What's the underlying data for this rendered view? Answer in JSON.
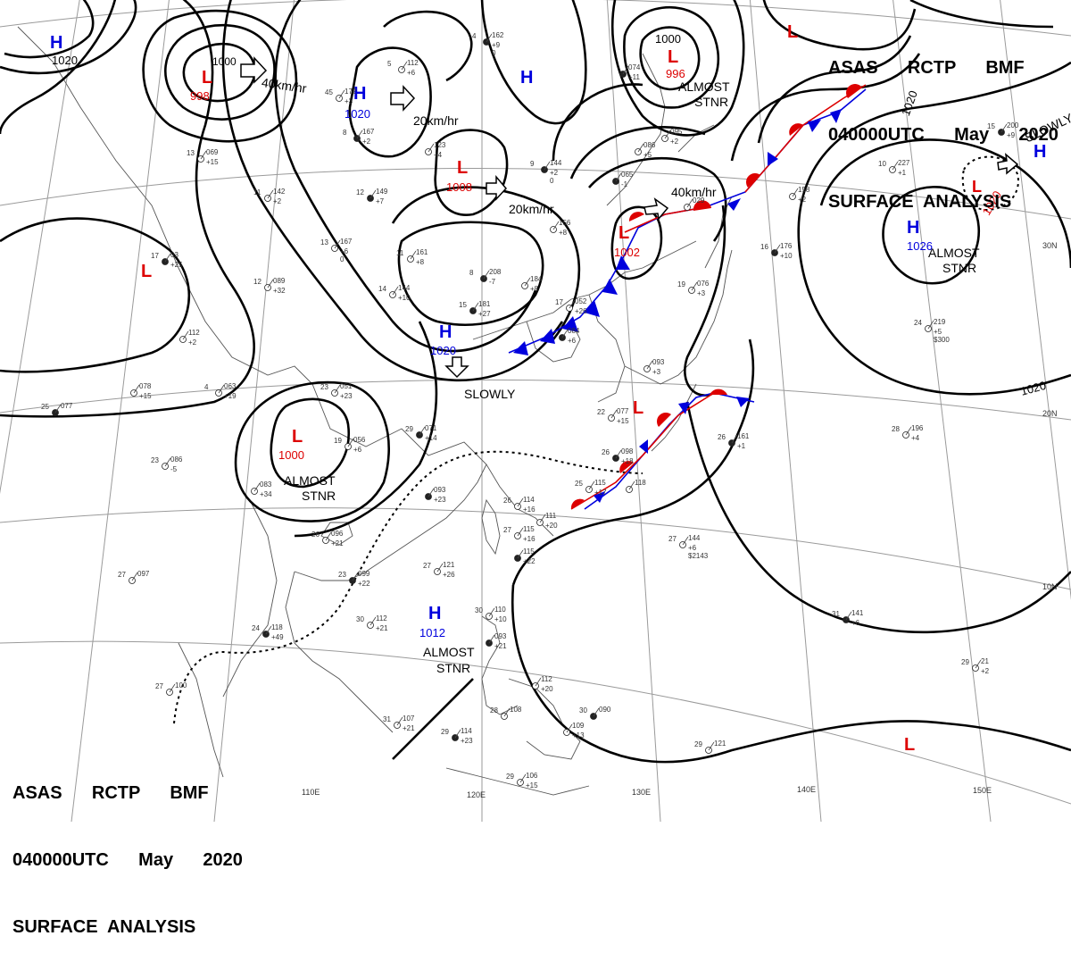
{
  "header": {
    "line1": "ASAS      RCTP      BMF",
    "line2": "040000UTC      May      2020",
    "line3": "SURFACE  ANALYSIS"
  },
  "colors": {
    "high": "#0000dd",
    "low": "#dd0000",
    "isobar": "#000000",
    "grid": "#9a9a9a",
    "coast": "#555555"
  },
  "longitude_labels": [
    "110E",
    "120E",
    "130E",
    "140E",
    "150E"
  ],
  "latitude_labels": [
    "30N",
    "20N",
    "10N"
  ],
  "isobar_labels": [
    "1020",
    "1000",
    "1020",
    "1020"
  ],
  "pressure_centers": [
    {
      "type": "H",
      "value": ""
    },
    {
      "type": "L",
      "value": "1000"
    },
    {
      "type": "L",
      "value": "998"
    },
    {
      "type": "H",
      "value": "1020"
    },
    {
      "type": "H",
      "value": ""
    },
    {
      "type": "L",
      "value": "1008"
    },
    {
      "type": "L",
      "value": "996"
    },
    {
      "type": "L",
      "value": ""
    },
    {
      "type": "L",
      "value": "1002"
    },
    {
      "type": "H",
      "value": "1020"
    },
    {
      "type": "L",
      "value": ""
    },
    {
      "type": "L",
      "value": "1000"
    },
    {
      "type": "L",
      "value": ""
    },
    {
      "type": "H",
      "value": "1026"
    },
    {
      "type": "L",
      "value": "1020"
    },
    {
      "type": "H",
      "value": ""
    },
    {
      "type": "H",
      "value": "1012"
    },
    {
      "type": "L",
      "value": ""
    }
  ],
  "motion_labels": [
    "40km/hr",
    "20km/hr",
    "20km/hr",
    "40km/hr",
    "SLOWLY",
    "SLOWLY"
  ],
  "stationary_labels": [
    {
      "line1": "ALMOST",
      "line2": "STNR"
    },
    {
      "line1": "ALMOST",
      "line2": "STNR"
    },
    {
      "line1": "ALMOST",
      "line2": "STNR"
    },
    {
      "line1": "ALMOST",
      "line2": "STNR"
    }
  ],
  "station_plots": [
    {
      "top": "162",
      "left": "4",
      "mid": "+9",
      "bottom": "0"
    },
    {
      "top": "112",
      "left": "5",
      "mid": "+6",
      "bottom": ""
    },
    {
      "top": "172",
      "left": "45",
      "mid": "+3",
      "bottom": ""
    },
    {
      "top": "167",
      "left": "8",
      "mid": "+2",
      "bottom": ""
    },
    {
      "top": "123",
      "left": "",
      "mid": "+4",
      "bottom": ""
    },
    {
      "top": "142",
      "left": "11",
      "mid": "+2",
      "bottom": ""
    },
    {
      "top": "149",
      "left": "12",
      "mid": "+7",
      "bottom": ""
    },
    {
      "top": "167",
      "left": "13",
      "mid": "+6",
      "bottom": "0"
    },
    {
      "top": "069",
      "left": "13",
      "mid": "+15",
      "bottom": ""
    },
    {
      "top": "144",
      "left": "9",
      "mid": "+2",
      "bottom": "0"
    },
    {
      "top": "156",
      "left": "",
      "mid": "+8",
      "bottom": ""
    },
    {
      "top": "161",
      "left": "11",
      "mid": "+8",
      "bottom": ""
    },
    {
      "top": "208",
      "left": "8",
      "mid": "-7",
      "bottom": ""
    },
    {
      "top": "184",
      "left": "",
      "mid": "+8",
      "bottom": ""
    },
    {
      "top": "144",
      "left": "14",
      "mid": "+10",
      "bottom": ""
    },
    {
      "top": "181",
      "left": "15",
      "mid": "+27",
      "bottom": ""
    },
    {
      "top": "089",
      "left": "12",
      "mid": "+32",
      "bottom": ""
    },
    {
      "top": "112",
      "left": "",
      "mid": "+2",
      "bottom": ""
    },
    {
      "top": "03",
      "left": "17",
      "mid": "+25",
      "bottom": ""
    },
    {
      "top": "063",
      "left": "4",
      "mid": "+19",
      "bottom": ""
    },
    {
      "top": "078",
      "left": "",
      "mid": "+15",
      "bottom": ""
    },
    {
      "top": "077",
      "left": "25",
      "mid": "",
      "bottom": ""
    },
    {
      "top": "051",
      "left": "23",
      "mid": "+23",
      "bottom": ""
    },
    {
      "top": "056",
      "left": "19",
      "mid": "+6",
      "bottom": ""
    },
    {
      "top": "071",
      "left": "29",
      "mid": "+14",
      "bottom": ""
    },
    {
      "top": "086",
      "left": "23",
      "mid": "-5",
      "bottom": ""
    },
    {
      "top": "083",
      "left": "",
      "mid": "+34",
      "bottom": ""
    },
    {
      "top": "093",
      "left": "",
      "mid": "+23",
      "bottom": ""
    },
    {
      "top": "114",
      "left": "26",
      "mid": "+16",
      "bottom": ""
    },
    {
      "top": "096",
      "left": "26",
      "mid": "+21",
      "bottom": ""
    },
    {
      "top": "099",
      "left": "23",
      "mid": "+22",
      "bottom": ""
    },
    {
      "top": "121",
      "left": "27",
      "mid": "+26",
      "bottom": ""
    },
    {
      "top": "115",
      "left": "27",
      "mid": "+16",
      "bottom": ""
    },
    {
      "top": "115",
      "left": "",
      "mid": "+22",
      "bottom": ""
    },
    {
      "top": "111",
      "left": "",
      "mid": "+20",
      "bottom": ""
    },
    {
      "top": "097",
      "left": "27",
      "mid": "",
      "bottom": ""
    },
    {
      "top": "118",
      "left": "24",
      "mid": "+49",
      "bottom": ""
    },
    {
      "top": "112",
      "left": "30",
      "mid": "+21",
      "bottom": ""
    },
    {
      "top": "110",
      "left": "30",
      "mid": "+10",
      "bottom": ""
    },
    {
      "top": "093",
      "left": "",
      "mid": "+21",
      "bottom": ""
    },
    {
      "top": "112",
      "left": "",
      "mid": "+20",
      "bottom": ""
    },
    {
      "top": "107",
      "left": "31",
      "mid": "+21",
      "bottom": ""
    },
    {
      "top": "114",
      "left": "29",
      "mid": "+23",
      "bottom": ""
    },
    {
      "top": "108",
      "left": "28",
      "mid": "",
      "bottom": ""
    },
    {
      "top": "109",
      "left": "",
      "mid": "+13",
      "bottom": ""
    },
    {
      "top": "090",
      "left": "30",
      "mid": "",
      "bottom": ""
    },
    {
      "top": "106",
      "left": "29",
      "mid": "+15",
      "bottom": ""
    },
    {
      "top": "100",
      "left": "27",
      "mid": "",
      "bottom": ""
    },
    {
      "top": "074",
      "left": "",
      "mid": "+11",
      "bottom": ""
    },
    {
      "top": "086",
      "left": "",
      "mid": "+5",
      "bottom": ""
    },
    {
      "top": "095",
      "left": "",
      "mid": "+2",
      "bottom": ""
    },
    {
      "top": "065",
      "left": "",
      "mid": "-1",
      "bottom": ""
    },
    {
      "top": "029",
      "left": "",
      "mid": "",
      "bottom": ""
    },
    {
      "top": "158",
      "left": "",
      "mid": "+2",
      "bottom": ""
    },
    {
      "top": "176",
      "left": "16",
      "mid": "+10",
      "bottom": ""
    },
    {
      "top": "076",
      "left": "19",
      "mid": "+3",
      "bottom": ""
    },
    {
      "top": "052",
      "left": "17",
      "mid": "+26",
      "bottom": ""
    },
    {
      "top": "084",
      "left": "",
      "mid": "+6",
      "bottom": ""
    },
    {
      "top": "093",
      "left": "",
      "mid": "+3",
      "bottom": ""
    },
    {
      "top": "077",
      "left": "22",
      "mid": "+15",
      "bottom": ""
    },
    {
      "top": "098",
      "left": "26",
      "mid": "+18",
      "bottom": ""
    },
    {
      "top": "115",
      "left": "25",
      "mid": "+17",
      "bottom": ""
    },
    {
      "top": "118",
      "left": "",
      "mid": "",
      "bottom": ""
    },
    {
      "top": "161",
      "left": "26",
      "mid": "+1",
      "bottom": ""
    },
    {
      "top": "196",
      "left": "28",
      "mid": "+4",
      "bottom": ""
    },
    {
      "top": "144",
      "left": "27",
      "mid": "+6",
      "bottom": "$2143"
    },
    {
      "top": "141",
      "left": "31",
      "mid": "+6",
      "bottom": ""
    },
    {
      "top": "121",
      "left": "29",
      "mid": "",
      "bottom": ""
    },
    {
      "top": "227",
      "left": "10",
      "mid": "+1",
      "bottom": ""
    },
    {
      "top": "200",
      "left": "15",
      "mid": "+9",
      "bottom": ""
    },
    {
      "top": "219",
      "left": "24",
      "mid": "+5",
      "bottom": "$300"
    },
    {
      "top": "21",
      "left": "29",
      "mid": "+2",
      "bottom": ""
    }
  ]
}
